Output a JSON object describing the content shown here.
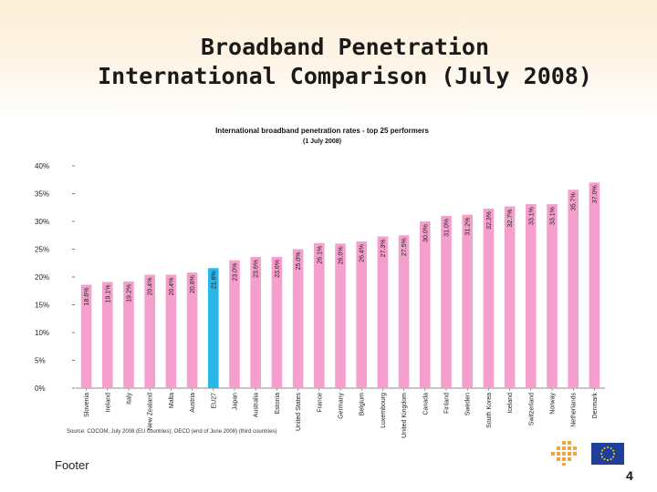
{
  "slide": {
    "title_line1": "Broadband Penetration",
    "title_line2": "International Comparison (July 2008)",
    "footer": "Footer",
    "page_number": "4"
  },
  "colors": {
    "bar": "#f5a0cc",
    "highlight": "#29b6e8"
  },
  "chart_data": {
    "type": "bar",
    "title": "International broadband penetration rates - top 25 performers",
    "subtitle": "(1 July 2008)",
    "categories": [
      "Slovenia",
      "Ireland",
      "Italy",
      "New Zealand",
      "Malta",
      "Austria",
      "EU27",
      "Japan",
      "Australia",
      "Estonia",
      "United States",
      "France",
      "Germany",
      "Belgium",
      "Luxembourg",
      "United Kingdom",
      "Canada",
      "Finland",
      "Sweden",
      "South Korea",
      "Iceland",
      "Switzerland",
      "Norway",
      "Netherlands",
      "Denmark"
    ],
    "values": [
      18.6,
      19.1,
      19.2,
      20.4,
      20.4,
      20.8,
      21.6,
      23.0,
      23.6,
      23.6,
      25.0,
      26.1,
      26.0,
      26.4,
      27.3,
      27.5,
      30.0,
      31.0,
      31.2,
      32.3,
      32.7,
      33.1,
      33.1,
      35.7,
      37.0
    ],
    "labels": [
      "18.6%",
      "19.1%",
      "19.2%",
      "20.4%",
      "20.4%",
      "20.8%",
      "21.6%",
      "23.0%",
      "23.6%",
      "23.6%",
      "25.0%",
      "26.1%",
      "26.0%",
      "26.4%",
      "27.3%",
      "27.5%",
      "30.0%",
      "31.0%",
      "31.2%",
      "32.3%",
      "32.7%",
      "33.1%",
      "33.1%",
      "35.7%",
      "37.0%"
    ],
    "highlight_category": "EU27",
    "ylim": [
      0,
      40
    ],
    "yticks": [
      0,
      5,
      10,
      15,
      20,
      25,
      30,
      35,
      40
    ],
    "ytick_labels": [
      "0%",
      "5%",
      "10%",
      "15%",
      "20%",
      "25%",
      "30%",
      "35%",
      "40%"
    ],
    "xlabel": "",
    "ylabel": "",
    "source": "Source: COCOM, July 2008 (EU countries); OECD (end of June 2008) (third countries)"
  }
}
